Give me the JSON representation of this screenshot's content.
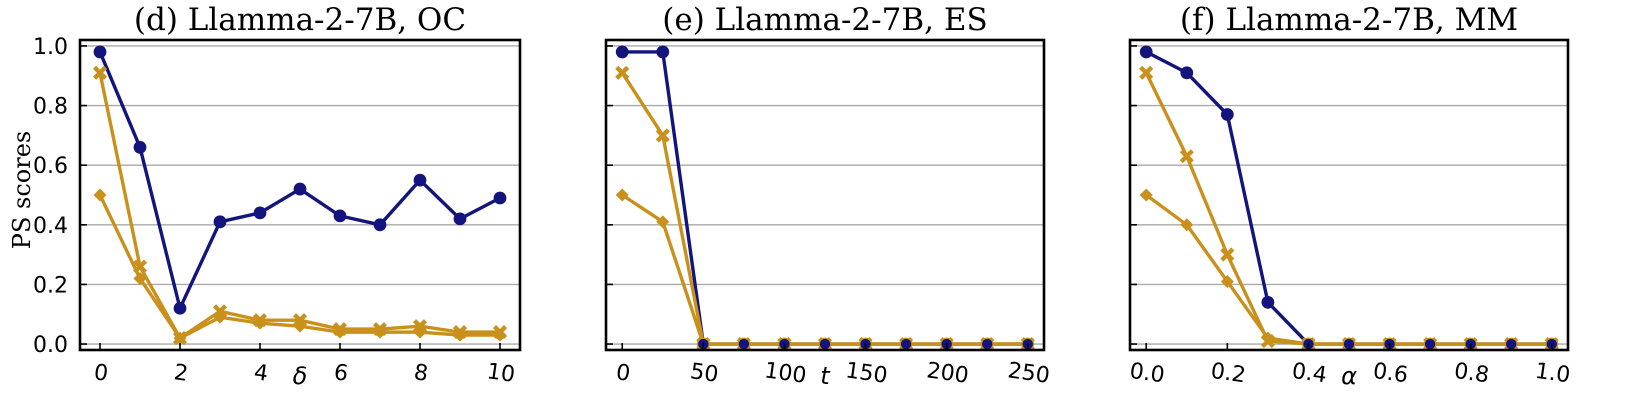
{
  "figure": {
    "ylabel": "PS scores",
    "yticks": [
      "0.0",
      "0.2",
      "0.4",
      "0.6",
      "0.8",
      "1.0"
    ]
  },
  "colors": {
    "navy": "#14147d",
    "gold": "#c9911c",
    "grid": "#a9a9a9"
  },
  "chart_data": [
    {
      "type": "line",
      "title": "(d) Llamma-2-7B, OC",
      "xlabel": "δ",
      "ylabel": "PS scores",
      "xlim": [
        -0.5,
        10.5
      ],
      "ylim": [
        -0.02,
        1.02
      ],
      "xticks": [
        0,
        2,
        4,
        6,
        8,
        10
      ],
      "xtick_labels": [
        "0",
        "2",
        "4",
        "6",
        "8",
        "10"
      ],
      "grid": "horizontal",
      "x": [
        0,
        1,
        2,
        3,
        4,
        5,
        6,
        7,
        8,
        9,
        10
      ],
      "series": [
        {
          "color": "#14147d",
          "marker": "circle",
          "values": [
            0.98,
            0.66,
            0.12,
            0.41,
            0.44,
            0.52,
            0.43,
            0.4,
            0.55,
            0.42,
            0.49
          ]
        },
        {
          "color": "#c9911c",
          "marker": "x",
          "values": [
            0.91,
            0.26,
            0.02,
            0.11,
            0.08,
            0.08,
            0.05,
            0.05,
            0.06,
            0.04,
            0.04
          ]
        },
        {
          "color": "#c9911c",
          "marker": "diamond",
          "values": [
            0.5,
            0.22,
            0.02,
            0.09,
            0.07,
            0.06,
            0.04,
            0.04,
            0.04,
            0.03,
            0.03
          ]
        }
      ]
    },
    {
      "type": "line",
      "title": "(e) Llamma-2-7B, ES",
      "xlabel": "t",
      "xlim": [
        -10,
        260
      ],
      "ylim": [
        -0.02,
        1.02
      ],
      "xticks": [
        0,
        50,
        100,
        150,
        200,
        250
      ],
      "xtick_labels": [
        "0",
        "50",
        "100",
        "150",
        "200",
        "250"
      ],
      "grid": "horizontal",
      "x": [
        0,
        25,
        50,
        75,
        100,
        125,
        150,
        175,
        200,
        225,
        250
      ],
      "series": [
        {
          "color": "#14147d",
          "marker": "circle",
          "values": [
            0.98,
            0.98,
            0,
            0,
            0,
            0,
            0,
            0,
            0,
            0,
            0
          ]
        },
        {
          "color": "#c9911c",
          "marker": "x",
          "values": [
            0.91,
            0.7,
            0,
            0,
            0,
            0,
            0,
            0,
            0,
            0,
            0
          ]
        },
        {
          "color": "#c9911c",
          "marker": "diamond",
          "values": [
            0.5,
            0.41,
            0,
            0,
            0,
            0,
            0,
            0,
            0,
            0,
            0
          ]
        }
      ]
    },
    {
      "type": "line",
      "title": "(f) Llamma-2-7B, MM",
      "xlabel": "α",
      "xlim": [
        -0.04,
        1.04
      ],
      "ylim": [
        -0.02,
        1.02
      ],
      "xticks": [
        0,
        0.2,
        0.4,
        0.6,
        0.8,
        1.0
      ],
      "xtick_labels": [
        "0.0",
        "0.2",
        "0.4",
        "0.6",
        "0.8",
        "1.0"
      ],
      "grid": "horizontal",
      "x": [
        0,
        0.1,
        0.2,
        0.3,
        0.4,
        0.5,
        0.6,
        0.7,
        0.8,
        0.9,
        1.0
      ],
      "series": [
        {
          "color": "#14147d",
          "marker": "circle",
          "values": [
            0.98,
            0.91,
            0.77,
            0.14,
            0,
            0,
            0,
            0,
            0,
            0,
            0
          ]
        },
        {
          "color": "#c9911c",
          "marker": "x",
          "values": [
            0.91,
            0.63,
            0.3,
            0.01,
            0,
            0,
            0,
            0,
            0,
            0,
            0
          ]
        },
        {
          "color": "#c9911c",
          "marker": "diamond",
          "values": [
            0.5,
            0.4,
            0.21,
            0.02,
            0,
            0,
            0,
            0,
            0,
            0,
            0
          ]
        }
      ]
    }
  ]
}
